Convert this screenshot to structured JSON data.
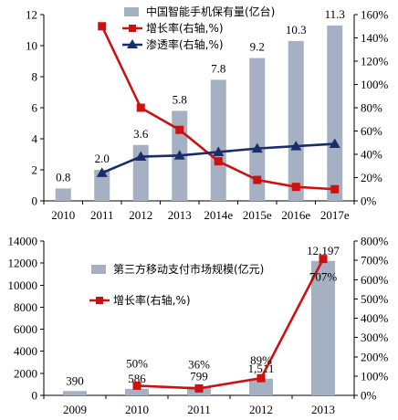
{
  "chart_data": [
    {
      "type": "bar",
      "categories": [
        "2010",
        "2011",
        "2012",
        "2013",
        "2014e",
        "2015e",
        "2016e",
        "2017e"
      ],
      "y_left_ticks": [
        "0",
        "2",
        "4",
        "6",
        "8",
        "10",
        "12"
      ],
      "y_right_ticks": [
        "0%",
        "20%",
        "40%",
        "60%",
        "80%",
        "100%",
        "120%",
        "140%",
        "160%"
      ],
      "ylim_left": [
        0,
        12
      ],
      "ylim_right": [
        0,
        1.6
      ],
      "legend_position": "top-right",
      "grid": false,
      "series": [
        {
          "name": "中国智能手机保有量(亿台)",
          "kind": "bar",
          "axis": "left",
          "color": "#a5b1c2",
          "values": [
            0.8,
            2.0,
            3.6,
            5.8,
            7.8,
            9.2,
            10.3,
            11.3
          ],
          "labels": [
            "0.8",
            "2.0",
            "3.6",
            "5.8",
            "7.8",
            "9.2",
            "10.3",
            "11.3"
          ]
        },
        {
          "name": "增长率(右轴,%)",
          "kind": "line",
          "marker": "square",
          "axis": "right",
          "color": "#cc1111",
          "values": [
            null,
            1.5,
            0.8,
            0.61,
            0.34,
            0.18,
            0.12,
            0.1
          ]
        },
        {
          "name": "渗透率(右轴,%)",
          "kind": "line",
          "marker": "triangle",
          "axis": "right",
          "color": "#1a2d6b",
          "values": [
            null,
            0.24,
            0.38,
            0.39,
            0.42,
            0.45,
            0.47,
            0.49
          ]
        }
      ]
    },
    {
      "type": "bar",
      "categories": [
        "2009",
        "2010",
        "2011",
        "2012",
        "2013"
      ],
      "y_left_ticks": [
        "0",
        "2000",
        "4000",
        "6000",
        "8000",
        "10000",
        "12000",
        "14000"
      ],
      "y_right_ticks": [
        "0%",
        "100%",
        "200%",
        "300%",
        "400%",
        "500%",
        "600%",
        "700%",
        "800%"
      ],
      "ylim_left": [
        0,
        14000
      ],
      "ylim_right": [
        0,
        8
      ],
      "legend_position": "top-left",
      "grid": false,
      "series": [
        {
          "name": "第三方移动支付市场规模(亿元)",
          "kind": "bar",
          "axis": "left",
          "color": "#a5b1c2",
          "values": [
            390,
            586,
            799,
            1511,
            12197
          ],
          "labels": [
            "390",
            "586",
            "799",
            "1,511",
            "12,197"
          ]
        },
        {
          "name": "增长率(右轴,%)",
          "kind": "line",
          "marker": "square",
          "axis": "right",
          "color": "#cc1111",
          "values": [
            null,
            0.5,
            0.36,
            0.89,
            7.07
          ],
          "labels": [
            "",
            "50%",
            "36%",
            "89%",
            "707%"
          ]
        }
      ]
    }
  ]
}
